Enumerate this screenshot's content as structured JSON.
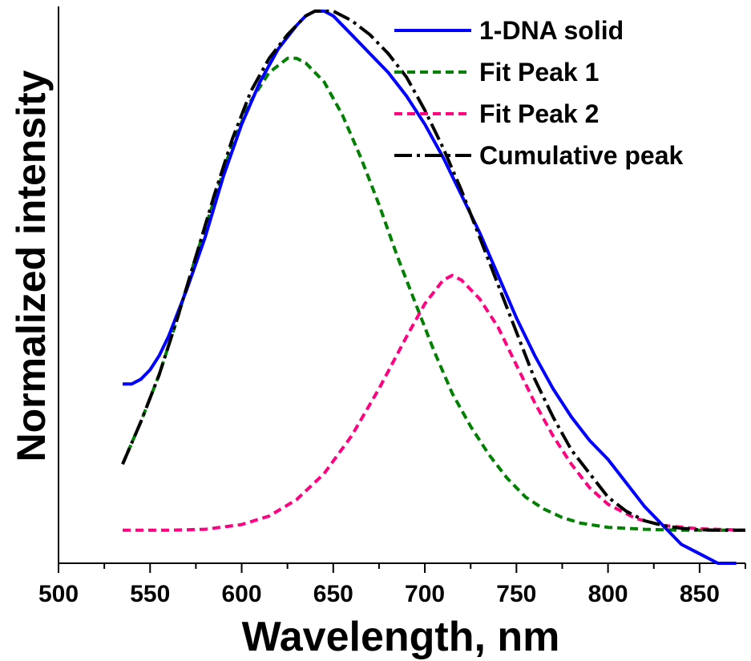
{
  "chart_data": {
    "type": "line",
    "title": "",
    "xlabel": "Wavelength, nm",
    "ylabel": "Normalized intensity",
    "xlim": [
      500,
      875
    ],
    "ylim": [
      -0.07,
      1.11
    ],
    "x_ticks": [
      500,
      550,
      600,
      650,
      700,
      750,
      800,
      850
    ],
    "x_tick_labels": [
      "500",
      "550",
      "600",
      "650",
      "700",
      "750",
      "800",
      "850"
    ],
    "y_ticks_labeled": false,
    "grid": false,
    "legend_position": "top-right",
    "series": [
      {
        "name": "1-DNA solid",
        "color": "#0000ff",
        "style": "solid",
        "x": [
          535,
          540,
          545,
          550,
          555,
          560,
          570,
          580,
          590,
          600,
          610,
          620,
          630,
          635,
          640,
          645,
          650,
          660,
          670,
          680,
          690,
          700,
          710,
          720,
          730,
          740,
          750,
          760,
          770,
          780,
          790,
          800,
          810,
          820,
          830,
          840,
          850,
          860,
          865,
          870
        ],
        "y": [
          0.31,
          0.31,
          0.32,
          0.34,
          0.37,
          0.41,
          0.51,
          0.62,
          0.75,
          0.86,
          0.95,
          1.02,
          1.07,
          1.09,
          1.1,
          1.1,
          1.09,
          1.05,
          1.01,
          0.97,
          0.92,
          0.86,
          0.79,
          0.71,
          0.63,
          0.54,
          0.45,
          0.37,
          0.3,
          0.24,
          0.19,
          0.15,
          0.1,
          0.05,
          0.01,
          -0.03,
          -0.05,
          -0.07,
          -0.07,
          -0.07
        ]
      },
      {
        "name": "Fit Peak 1",
        "color": "#008000",
        "style": "dashed",
        "x": [
          535,
          545,
          555,
          565,
          575,
          585,
          595,
          605,
          615,
          625,
          630,
          635,
          645,
          655,
          665,
          675,
          685,
          695,
          705,
          715,
          725,
          735,
          745,
          755,
          765,
          775,
          785,
          800,
          820,
          840,
          860,
          875
        ],
        "y": [
          0.14,
          0.23,
          0.33,
          0.45,
          0.58,
          0.7,
          0.82,
          0.91,
          0.97,
          1.0,
          1.0,
          0.99,
          0.95,
          0.88,
          0.79,
          0.69,
          0.58,
          0.48,
          0.38,
          0.29,
          0.22,
          0.16,
          0.11,
          0.07,
          0.045,
          0.027,
          0.015,
          0.006,
          0.002,
          0.0,
          0.0,
          0.0
        ]
      },
      {
        "name": "Fit Peak 2",
        "color": "#ff0080",
        "style": "dashed",
        "x": [
          535,
          560,
          580,
          600,
          615,
          630,
          645,
          660,
          675,
          690,
          700,
          710,
          715,
          720,
          730,
          740,
          750,
          760,
          770,
          780,
          790,
          800,
          815,
          830,
          850,
          875
        ],
        "y": [
          0.0,
          0.0,
          0.002,
          0.012,
          0.03,
          0.065,
          0.12,
          0.2,
          0.3,
          0.41,
          0.48,
          0.53,
          0.54,
          0.53,
          0.49,
          0.43,
          0.35,
          0.27,
          0.2,
          0.14,
          0.09,
          0.055,
          0.025,
          0.01,
          0.003,
          0.0
        ]
      },
      {
        "name": "Cumulative peak",
        "color": "#000000",
        "style": "dashdot",
        "x": [
          535,
          545,
          555,
          565,
          575,
          585,
          595,
          605,
          615,
          625,
          635,
          640,
          645,
          650,
          660,
          670,
          680,
          690,
          700,
          710,
          720,
          730,
          740,
          750,
          760,
          770,
          780,
          790,
          800,
          810,
          820,
          830,
          840,
          850,
          860,
          875
        ],
        "y": [
          0.14,
          0.23,
          0.33,
          0.45,
          0.58,
          0.71,
          0.83,
          0.93,
          1.0,
          1.05,
          1.09,
          1.1,
          1.1,
          1.1,
          1.08,
          1.05,
          1.01,
          0.96,
          0.89,
          0.81,
          0.72,
          0.62,
          0.52,
          0.42,
          0.32,
          0.24,
          0.17,
          0.12,
          0.07,
          0.04,
          0.02,
          0.01,
          0.004,
          0.001,
          0.0,
          0.0
        ]
      }
    ]
  }
}
